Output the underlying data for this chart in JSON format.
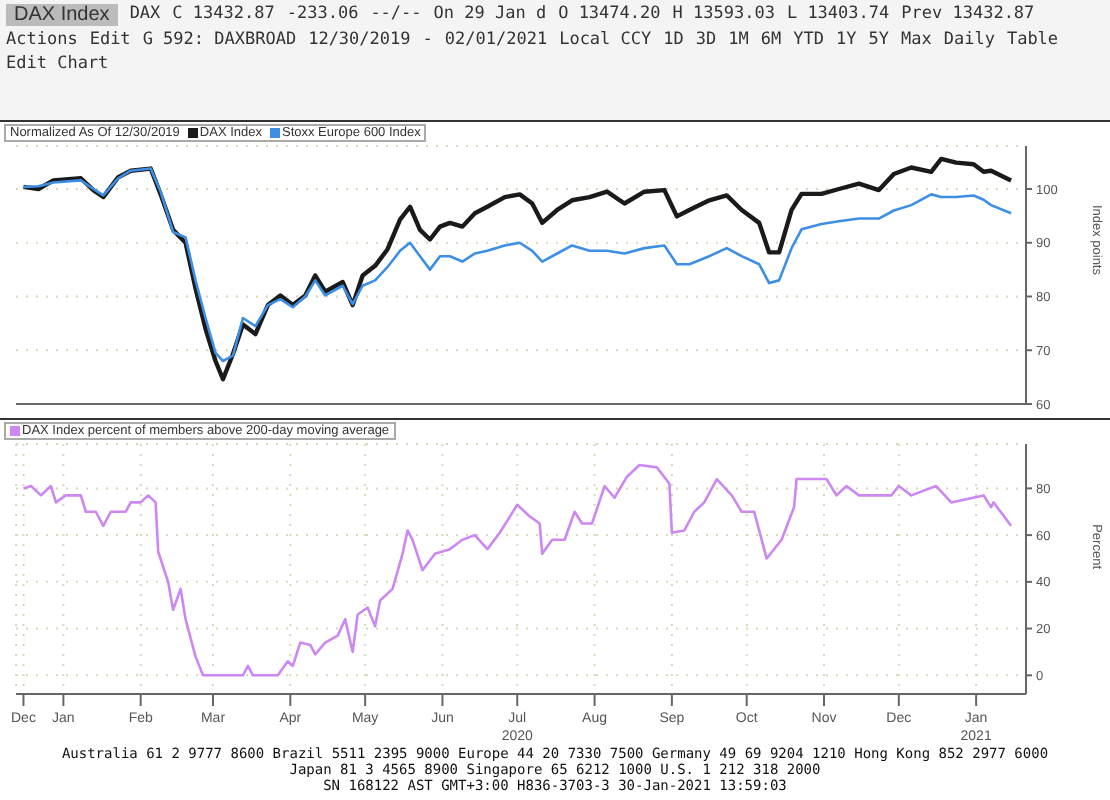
{
  "chart_data": [
    {
      "type": "line",
      "title": "DAX Index",
      "legend_title": "Normalized As Of 12/30/2019",
      "ylabel": "Index points",
      "annotations": [
        "DAX",
        "C 13432.87",
        "-233.06",
        "--/--",
        "On 29 Jan d",
        "O 13474.20",
        "H 13593.03",
        "L 13403.74",
        "Prev 13432.87",
        "Actions",
        "Edit",
        "G 592: DAXBROAD",
        "12/30/2019",
        "-",
        "02/01/2021",
        "Local CCY",
        "1D",
        "3D",
        "1M",
        "6M",
        "YTD",
        "1Y",
        "5Y",
        "Max",
        "Daily",
        "Table",
        "Edit Chart"
      ],
      "x": [
        "2019-12-30",
        "2020-01-05",
        "2020-01-11",
        "2020-01-22",
        "2020-01-27",
        "2020-01-31",
        "2020-02-06",
        "2020-02-11",
        "2020-02-19",
        "2020-02-23",
        "2020-02-28",
        "2020-03-04",
        "2020-03-08",
        "2020-03-12",
        "2020-03-16",
        "2020-03-19",
        "2020-03-23",
        "2020-03-27",
        "2020-04-01",
        "2020-04-06",
        "2020-04-11",
        "2020-04-16",
        "2020-04-21",
        "2020-04-25",
        "2020-04-29",
        "2020-05-06",
        "2020-05-10",
        "2020-05-14",
        "2020-05-19",
        "2020-05-24",
        "2020-05-29",
        "2020-06-02",
        "2020-06-06",
        "2020-06-10",
        "2020-06-14",
        "2020-06-18",
        "2020-06-23",
        "2020-06-28",
        "2020-07-03",
        "2020-07-10",
        "2020-07-16",
        "2020-07-21",
        "2020-07-25",
        "2020-07-31",
        "2020-08-06",
        "2020-08-13",
        "2020-08-20",
        "2020-08-27",
        "2020-09-04",
        "2020-09-12",
        "2020-09-17",
        "2020-09-22",
        "2020-09-30",
        "2020-10-07",
        "2020-10-13",
        "2020-10-20",
        "2020-10-24",
        "2020-10-28",
        "2020-11-02",
        "2020-11-06",
        "2020-11-14",
        "2020-11-21",
        "2020-11-29",
        "2020-12-07",
        "2020-12-13",
        "2020-12-20",
        "2020-12-28",
        "2021-01-01",
        "2021-01-07",
        "2021-01-14",
        "2021-01-18",
        "2021-01-21",
        "2021-01-29"
      ],
      "series": [
        {
          "name": "DAX Index",
          "color": "#1a1a1a",
          "values": [
            100.4,
            100,
            101.6,
            102,
            99.8,
            98.5,
            102.2,
            103.4,
            103.8,
            99,
            92.4,
            90,
            81.5,
            74,
            68,
            64.6,
            69.3,
            74.8,
            73,
            78.4,
            80.2,
            78.4,
            80.2,
            83.9,
            80.9,
            82.7,
            78.4,
            83.9,
            85.7,
            88.8,
            94.3,
            96.7,
            92.4,
            90.6,
            93,
            93.7,
            93,
            95.5,
            96.7,
            98.5,
            99,
            97.3,
            93.7,
            96.1,
            97.9,
            98.5,
            99.5,
            97.3,
            99.5,
            99.8,
            94.9,
            96.1,
            97.9,
            98.8,
            96.1,
            93.7,
            88.2,
            88.2,
            96.1,
            99.1,
            99.1,
            100,
            101,
            99.8,
            102.8,
            104,
            103.2,
            105.6,
            104.9,
            104.6,
            103.2,
            103.4,
            101.6
          ]
        },
        {
          "name": "Stoxx Europe 600 Index",
          "color": "#3d8fe6",
          "values": [
            100.4,
            100.5,
            101.2,
            101.6,
            100,
            98.8,
            102,
            103.4,
            103.8,
            99.5,
            92,
            91,
            83,
            76,
            69.5,
            68,
            69,
            76,
            74.5,
            78.4,
            79.5,
            78,
            80,
            83,
            80.2,
            82,
            78.6,
            82,
            83,
            85.5,
            88.5,
            90,
            87.5,
            85,
            87.5,
            87.5,
            86.5,
            88,
            88.5,
            89.5,
            90,
            88.5,
            86.5,
            88,
            89.5,
            88.5,
            88.5,
            88,
            89,
            89.5,
            86,
            86,
            87.5,
            89,
            87.5,
            86,
            82.5,
            83,
            89,
            92.5,
            93.5,
            94,
            94.5,
            94.5,
            96,
            97,
            99,
            98.5,
            98.5,
            98.8,
            98,
            97,
            95.5
          ]
        }
      ],
      "xlim": [
        "2019-12-27",
        "2021-02-04"
      ],
      "ylim": [
        60,
        108
      ],
      "yticks": [
        60,
        70,
        80,
        90,
        100
      ],
      "grid": "y",
      "legend": "top left",
      "tick_labels": "y"
    },
    {
      "type": "line",
      "annotations": [
        "Australia 61 2 9777 8600 Brazil 5511 2395 9000 Europe 44 20 7330 7500 Germany 49 69 9204 1210 Hong Kong 852 2977 6000",
        "Japan 81 3 4565 8900 Singapore 65 6212 1000 U.S. 1 212 318 2000",
        "SN 168122 AST GMT+3:00 H836-3703-3 30-Jan-2021 13:59:03"
      ],
      "x": [
        "2019-12-30",
        "2020-01-02",
        "2020-01-06",
        "2020-01-10",
        "2020-01-12",
        "2020-01-16",
        "2020-01-22",
        "2020-01-24",
        "2020-01-28",
        "2020-01-31",
        "2020-02-03",
        "2020-02-09",
        "2020-02-11",
        "2020-02-15",
        "2020-02-18",
        "2020-02-21",
        "2020-02-22",
        "2020-02-26",
        "2020-02-28",
        "2020-03-02",
        "2020-03-04",
        "2020-03-08",
        "2020-03-11",
        "2020-03-27",
        "2020-03-29",
        "2020-03-31",
        "2020-04-10",
        "2020-04-14",
        "2020-04-16",
        "2020-04-19",
        "2020-04-23",
        "2020-04-25",
        "2020-04-29",
        "2020-05-04",
        "2020-05-07",
        "2020-05-10",
        "2020-05-12",
        "2020-05-16",
        "2020-05-19",
        "2020-05-21",
        "2020-05-26",
        "2020-05-30",
        "2020-06-01",
        "2020-06-03",
        "2020-06-07",
        "2020-06-12",
        "2020-06-18",
        "2020-06-23",
        "2020-06-28",
        "2020-07-03",
        "2020-07-08",
        "2020-07-15",
        "2020-07-20",
        "2020-07-24",
        "2020-07-25",
        "2020-07-29",
        "2020-08-03",
        "2020-08-07",
        "2020-08-10",
        "2020-08-14",
        "2020-08-19",
        "2020-08-23",
        "2020-08-28",
        "2020-09-02",
        "2020-09-09",
        "2020-09-14",
        "2020-09-15",
        "2020-09-20",
        "2020-09-24",
        "2020-09-28",
        "2020-10-03",
        "2020-10-09",
        "2020-10-13",
        "2020-10-18",
        "2020-10-23",
        "2020-10-29",
        "2020-11-03",
        "2020-11-04",
        "2020-11-16",
        "2020-11-20",
        "2020-11-24",
        "2020-11-29",
        "2020-12-12",
        "2020-12-15",
        "2020-12-20",
        "2020-12-30",
        "2021-01-05",
        "2021-01-18",
        "2021-01-21",
        "2021-01-22",
        "2021-01-29"
      ],
      "series": [
        {
          "name": "DAX Index percent of members above 200-day moving average",
          "color": "#cc88f0",
          "values": [
            80,
            81,
            77,
            81,
            74,
            77,
            77,
            70,
            70,
            64,
            70,
            70,
            74,
            74,
            77,
            74,
            53,
            40,
            28,
            37,
            24,
            8,
            0,
            0,
            4,
            0,
            0,
            6,
            4,
            14,
            13,
            9,
            14,
            17,
            24,
            10,
            26,
            29,
            21,
            32,
            37,
            52,
            62,
            58,
            45,
            52,
            54,
            58,
            60,
            54,
            61,
            73,
            68,
            65,
            52,
            58,
            58,
            70,
            65,
            65,
            81,
            76,
            85,
            90,
            89,
            82,
            61,
            62,
            70,
            74,
            84,
            77,
            70,
            70,
            50,
            58,
            72,
            84,
            84,
            77,
            81,
            77,
            77,
            81,
            77,
            81,
            74,
            77,
            72,
            74,
            64
          ]
        }
      ],
      "xlim": [
        "2019-12-27",
        "2021-02-04"
      ],
      "xticks": [
        {
          "value": "2019-12-30",
          "label": "Dec"
        },
        {
          "value": "2020-01-15",
          "label": "Jan"
        },
        {
          "value": "2020-02-15",
          "label": "Feb"
        },
        {
          "value": "2020-03-15",
          "label": "Mar"
        },
        {
          "value": "2020-04-15",
          "label": "Apr"
        },
        {
          "value": "2020-05-15",
          "label": "May"
        },
        {
          "value": "2020-06-15",
          "label": "Jun"
        },
        {
          "value": "2020-07-15",
          "label": "Jul\n2020"
        },
        {
          "value": "2020-08-15",
          "label": "Aug"
        },
        {
          "value": "2020-09-15",
          "label": "Sep"
        },
        {
          "value": "2020-10-15",
          "label": "Oct"
        },
        {
          "value": "2020-11-15",
          "label": "Nov"
        },
        {
          "value": "2020-12-15",
          "label": "Dec"
        },
        {
          "value": "2021-01-15",
          "label": "Jan\n2021"
        }
      ],
      "ylabel": "Percent",
      "ylim": [
        -8,
        99
      ],
      "yticks": [
        0,
        20,
        40,
        60,
        80
      ],
      "grid": true,
      "legend": "top left"
    }
  ]
}
